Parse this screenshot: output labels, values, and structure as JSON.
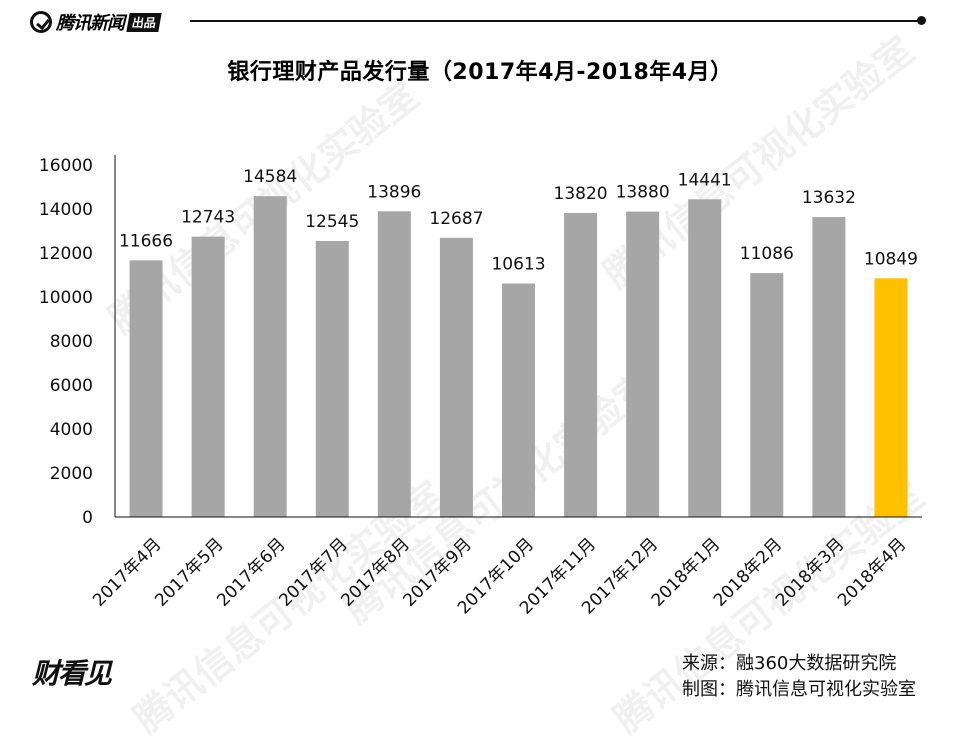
{
  "brand": {
    "name": "腾讯新闻",
    "tag": "出品",
    "footer_logo": "财看见"
  },
  "watermark": "腾讯信息可视化实验室",
  "source": {
    "line1": "来源：融360大数据研究院",
    "line2": "制图：腾讯信息可视化实验室"
  },
  "colors": {
    "bar": "#a6a6a6",
    "highlight": "#ffc000",
    "axis": "#111111"
  },
  "chart_data": {
    "type": "bar",
    "title": "银行理财产品发行量（2017年4月-2018年4月）",
    "xlabel": "",
    "ylabel": "",
    "categories": [
      "2017年4月",
      "2017年5月",
      "2017年6月",
      "2017年7月",
      "2017年8月",
      "2017年9月",
      "2017年10月",
      "2017年11月",
      "2017年12月",
      "2018年1月",
      "2018年2月",
      "2018年3月",
      "2018年4月"
    ],
    "values": [
      11666,
      12743,
      14584,
      12545,
      13896,
      12687,
      10613,
      13820,
      13880,
      14441,
      11086,
      13632,
      10849
    ],
    "ylim": [
      0,
      16000
    ],
    "yticks": [
      0,
      2000,
      4000,
      6000,
      8000,
      10000,
      12000,
      14000,
      16000
    ],
    "highlight_category": "2018年4月",
    "grid": false,
    "legend": "none"
  }
}
